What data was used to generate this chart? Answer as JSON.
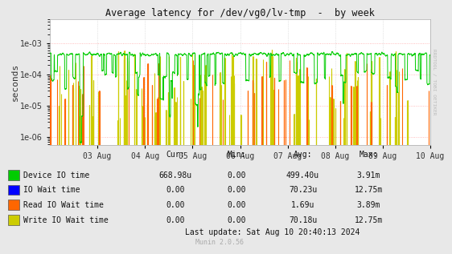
{
  "title": "Average latency for /dev/vg0/lv-tmp  -  by week",
  "ylabel": "seconds",
  "background_color": "#e8e8e8",
  "plot_bg_color": "#ffffff",
  "x_labels": [
    "03 Aug",
    "04 Aug",
    "05 Aug",
    "06 Aug",
    "07 Aug",
    "08 Aug",
    "09 Aug",
    "10 Aug"
  ],
  "y_ticks": [
    1e-06,
    1e-05,
    0.0001,
    0.001
  ],
  "y_labels": [
    "1e-06",
    "1e-05",
    "1e-04",
    "1e-03"
  ],
  "ylim_low": 5.5e-07,
  "ylim_high": 0.006,
  "colors": {
    "device_io": "#00cc00",
    "io_wait": "#0000ff",
    "read_io_wait": "#ff6600",
    "write_io_wait": "#cccc00"
  },
  "legend": [
    {
      "label": "Device IO time",
      "color": "#00cc00",
      "cur": "668.98u",
      "min": "0.00",
      "avg": "499.40u",
      "max": "3.91m"
    },
    {
      "label": "IO Wait time",
      "color": "#0000ff",
      "cur": "0.00",
      "min": "0.00",
      "avg": "70.23u",
      "max": "12.75m"
    },
    {
      "label": "Read IO Wait time",
      "color": "#ff6600",
      "cur": "0.00",
      "min": "0.00",
      "avg": "1.69u",
      "max": "3.89m"
    },
    {
      "label": "Write IO Wait time",
      "color": "#cccc00",
      "cur": "0.00",
      "min": "0.00",
      "avg": "70.18u",
      "max": "12.75m"
    }
  ],
  "watermark": "RRDTOOL / TOBI OETIKER",
  "footer": "Munin 2.0.56",
  "last_update": "Last update: Sat Aug 10 20:40:13 2024"
}
